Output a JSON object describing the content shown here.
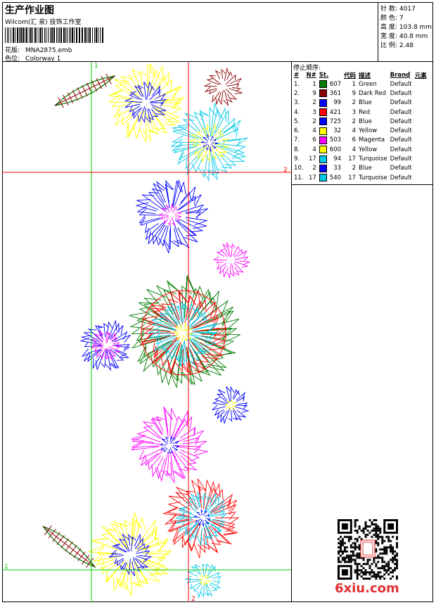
{
  "header": {
    "title": "生产作业图",
    "company": "Wilcom(汇 泉) 技饰工作室",
    "design_label": "花版:",
    "design_value": "MNA2875.emb",
    "colorway_label": "色位:",
    "colorway_value": "Colorway 1"
  },
  "stats": {
    "stitches_label": "针 数:",
    "stitches_value": "4017",
    "colors_label": "颜 色:",
    "colors_value": "7",
    "height_label": "高 度:",
    "height_value": "103.8 mm",
    "width_label": "宽 度:",
    "width_value": "40.8 mm",
    "scale_label": "比 例:",
    "scale_value": "2.48"
  },
  "stop_sequence": {
    "title": "停止顺序:",
    "columns": [
      "#",
      "N#",
      "St.",
      "代码",
      "描述",
      "Brand",
      "元素"
    ],
    "rows": [
      {
        "idx": "1.",
        "n": "1",
        "st": "607",
        "code": "1",
        "desc": "Green",
        "brand": "Default",
        "color": "#007a00"
      },
      {
        "idx": "2.",
        "n": "9",
        "st": "361",
        "code": "9",
        "desc": "Dark Red",
        "brand": "Default",
        "color": "#8b0000"
      },
      {
        "idx": "3.",
        "n": "2",
        "st": "99",
        "code": "2",
        "desc": "Blue",
        "brand": "Default",
        "color": "#0000ff"
      },
      {
        "idx": "4.",
        "n": "3",
        "st": "421",
        "code": "3",
        "desc": "Red",
        "brand": "Default",
        "color": "#ff0000"
      },
      {
        "idx": "5.",
        "n": "2",
        "st": "725",
        "code": "2",
        "desc": "Blue",
        "brand": "Default",
        "color": "#0000ff"
      },
      {
        "idx": "6.",
        "n": "4",
        "st": "32",
        "code": "4",
        "desc": "Yellow",
        "brand": "Default",
        "color": "#ffff00"
      },
      {
        "idx": "7.",
        "n": "6",
        "st": "503",
        "code": "6",
        "desc": "Magenta",
        "brand": "Default",
        "color": "#ff00ff"
      },
      {
        "idx": "8.",
        "n": "4",
        "st": "600",
        "code": "4",
        "desc": "Yellow",
        "brand": "Default",
        "color": "#ffff00"
      },
      {
        "idx": "9.",
        "n": "17",
        "st": "94",
        "code": "17",
        "desc": "Turquoise",
        "brand": "Default",
        "color": "#00c8e8"
      },
      {
        "idx": "10.",
        "n": "2",
        "st": "33",
        "code": "2",
        "desc": "Blue",
        "brand": "Default",
        "color": "#0000ff"
      },
      {
        "idx": "11.",
        "n": "17",
        "st": "540",
        "code": "17",
        "desc": "Turquoise",
        "brand": "Default",
        "color": "#00c8e8"
      }
    ]
  },
  "guides": {
    "v1_label": "1",
    "v2_label": "2",
    "h1_label": "1",
    "h2_label": "2",
    "v1_color": "#00cc00",
    "v2_color": "#ff0000",
    "h1_color": "#00cc00",
    "h2_color": "#ff0000"
  },
  "watermark": "6xiu.com"
}
